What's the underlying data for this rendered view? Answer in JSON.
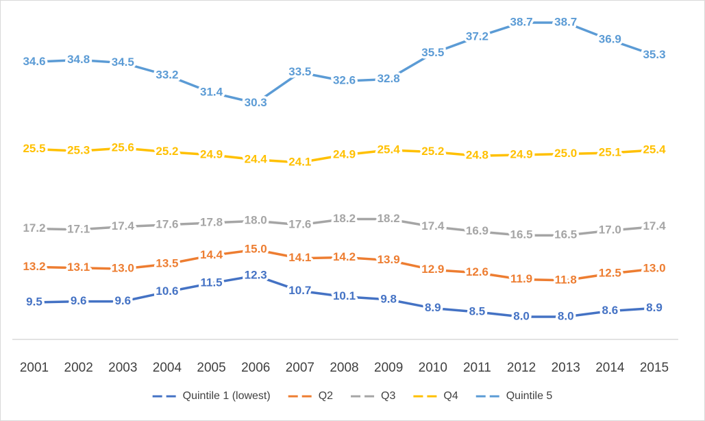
{
  "chart_data": {
    "type": "line",
    "categories": [
      "2001",
      "2002",
      "2003",
      "2004",
      "2005",
      "2006",
      "2007",
      "2008",
      "2009",
      "2010",
      "2011",
      "2012",
      "2013",
      "2014",
      "2015"
    ],
    "series": [
      {
        "name": "Quintile 1 (lowest)",
        "color": "#4472c4",
        "values": [
          9.5,
          9.6,
          9.6,
          10.6,
          11.5,
          12.3,
          10.7,
          10.1,
          9.8,
          8.9,
          8.5,
          8.0,
          8.0,
          8.6,
          8.9
        ],
        "value_labels": [
          "9.5",
          "9.6",
          "9.6",
          "10.6",
          "11.5",
          "12.3",
          "10.7",
          "10.1",
          "9.8",
          "8.9",
          "8.5",
          "8.0",
          "8.0",
          "8.6",
          "8.9"
        ]
      },
      {
        "name": "Q2",
        "color": "#ed7d31",
        "values": [
          13.2,
          13.1,
          13.0,
          13.5,
          14.4,
          15.0,
          14.1,
          14.2,
          13.9,
          12.9,
          12.6,
          11.9,
          11.8,
          12.5,
          13.0
        ],
        "value_labels": [
          "13.2",
          "13.1",
          "13.0",
          "13.5",
          "14.4",
          "15.0",
          "14.1",
          "14.2",
          "13.9",
          "12.9",
          "12.6",
          "11.9",
          "11.8",
          "12.5",
          "13.0"
        ]
      },
      {
        "name": "Q3",
        "color": "#a5a5a5",
        "values": [
          17.2,
          17.1,
          17.4,
          17.6,
          17.8,
          18.0,
          17.6,
          18.2,
          18.2,
          17.4,
          16.9,
          16.5,
          16.5,
          17.0,
          17.4
        ],
        "value_labels": [
          "17.2",
          "17.1",
          "17.4",
          "17.6",
          "17.8",
          "18.0",
          "17.6",
          "18.2",
          "18.2",
          "17.4",
          "16.9",
          "16.5",
          "16.5",
          "17.0",
          "17.4"
        ]
      },
      {
        "name": "Q4",
        "color": "#ffc000",
        "values": [
          25.5,
          25.3,
          25.6,
          25.2,
          24.9,
          24.4,
          24.1,
          24.9,
          25.4,
          25.2,
          24.8,
          24.9,
          25.0,
          25.1,
          25.4
        ],
        "value_labels": [
          "25.5",
          "25.3",
          "25.6",
          "25.2",
          "24.9",
          "24.4",
          "24.1",
          "24.9",
          "25.4",
          "25.2",
          "24.8",
          "24.9",
          "25.0",
          "25.1",
          "25.4"
        ]
      },
      {
        "name": "Quintile 5",
        "color": "#5b9bd5",
        "values": [
          34.6,
          34.8,
          34.5,
          33.2,
          31.4,
          30.3,
          33.5,
          32.6,
          32.8,
          35.5,
          37.2,
          38.7,
          38.7,
          36.9,
          35.3
        ],
        "value_labels": [
          "34.6",
          "34.8",
          "34.5",
          "33.2",
          "31.4",
          "30.3",
          "33.5",
          "32.6",
          "32.8",
          "35.5",
          "37.2",
          "38.7",
          "38.7",
          "36.9",
          "35.3"
        ]
      }
    ],
    "legend": "bottom"
  }
}
